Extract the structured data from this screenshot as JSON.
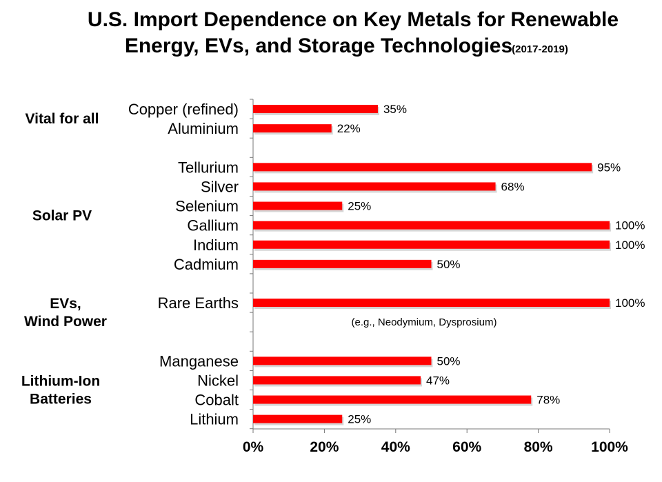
{
  "chart_data": {
    "type": "bar",
    "orientation": "horizontal",
    "title_main": "U.S. Import Dependence on Key Metals for Renewable Energy, EVs, and Storage Technologies",
    "title_line1": "U.S. Import Dependence on Key Metals for Renewable",
    "title_line2": "Energy, EVs, and Storage Technologies",
    "title_period": "(2017-2019)",
    "xlim": [
      0,
      100
    ],
    "x_ticks": [
      "0%",
      "20%",
      "40%",
      "60%",
      "80%",
      "100%"
    ],
    "bar_color": "#ff0000",
    "groups": [
      {
        "label_lines": [
          "Vital for all"
        ],
        "items": [
          {
            "label": "Copper (refined)",
            "value": 35,
            "value_label": "35%"
          },
          {
            "label": "Aluminium",
            "value": 22,
            "value_label": "22%"
          }
        ]
      },
      {
        "label_lines": [
          "Solar PV"
        ],
        "items": [
          {
            "label": "Tellurium",
            "value": 95,
            "value_label": "95%"
          },
          {
            "label": "Silver",
            "value": 68,
            "value_label": "68%"
          },
          {
            "label": "Selenium",
            "value": 25,
            "value_label": "25%"
          },
          {
            "label": "Gallium",
            "value": 100,
            "value_label": "100%"
          },
          {
            "label": "Indium",
            "value": 100,
            "value_label": "100%"
          },
          {
            "label": "Cadmium",
            "value": 50,
            "value_label": "50%"
          }
        ]
      },
      {
        "label_lines": [
          "EVs,",
          "Wind Power"
        ],
        "items": [
          {
            "label": "Rare Earths",
            "value": 100,
            "value_label": "100%"
          }
        ]
      },
      {
        "label_lines": [
          "Lithium-Ion",
          "Batteries"
        ],
        "items": [
          {
            "label": "Manganese",
            "value": 50,
            "value_label": "50%"
          },
          {
            "label": "Nickel",
            "value": 47,
            "value_label": "47%"
          },
          {
            "label": "Cobalt",
            "value": 78,
            "value_label": "78%"
          },
          {
            "label": "Lithium",
            "value": 25,
            "value_label": "25%"
          }
        ]
      }
    ],
    "annotation": "(e.g., Neodymium, Dysprosium)"
  }
}
